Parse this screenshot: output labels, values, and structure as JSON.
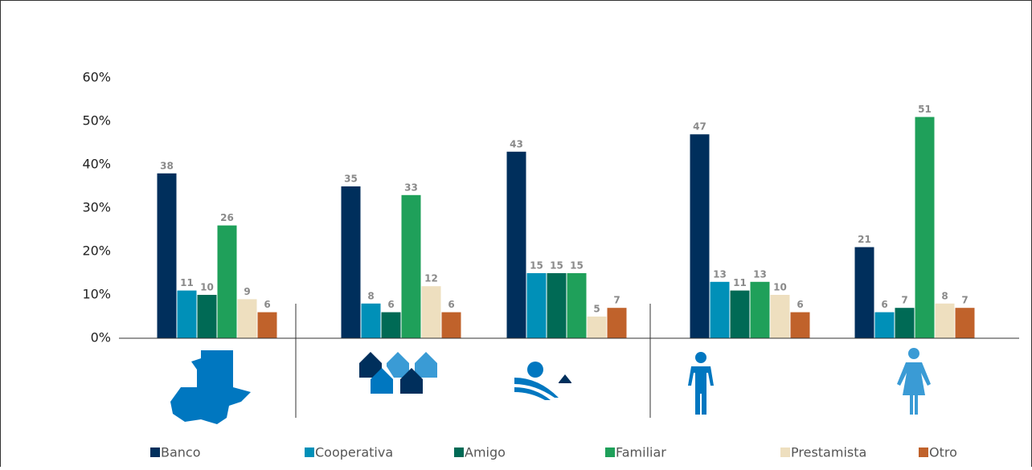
{
  "chart_data": {
    "type": "bar",
    "categories": [
      null,
      null,
      null,
      null,
      null
    ],
    "series": [
      {
        "name": "Banco",
        "color": "#002f5c",
        "values": [
          38,
          35,
          43,
          47,
          21
        ]
      },
      {
        "name": "Cooperativa",
        "color": "#0090b8",
        "values": [
          11,
          8,
          15,
          13,
          6
        ]
      },
      {
        "name": "Amigo",
        "color": "#006a55",
        "values": [
          10,
          6,
          15,
          11,
          7
        ]
      },
      {
        "name": "Familiar",
        "color": "#1fa05a",
        "values": [
          26,
          33,
          15,
          13,
          51
        ]
      },
      {
        "name": "Prestamista",
        "color": "#eedfbf",
        "values": [
          9,
          12,
          5,
          10,
          8
        ]
      },
      {
        "name": "Otro",
        "color": "#c0622b",
        "values": [
          6,
          6,
          7,
          6,
          7
        ]
      }
    ],
    "ylim": [
      0,
      60
    ],
    "yticks": [
      {
        "value": 0,
        "label": "0%"
      },
      {
        "value": 10,
        "label": "10%"
      },
      {
        "value": 20,
        "label": "20%"
      },
      {
        "value": 30,
        "label": "30%"
      },
      {
        "value": 40,
        "label": "40%"
      },
      {
        "value": 50,
        "label": "50%"
      },
      {
        "value": 60,
        "label": "60%"
      }
    ],
    "legend": "bottom"
  }
}
